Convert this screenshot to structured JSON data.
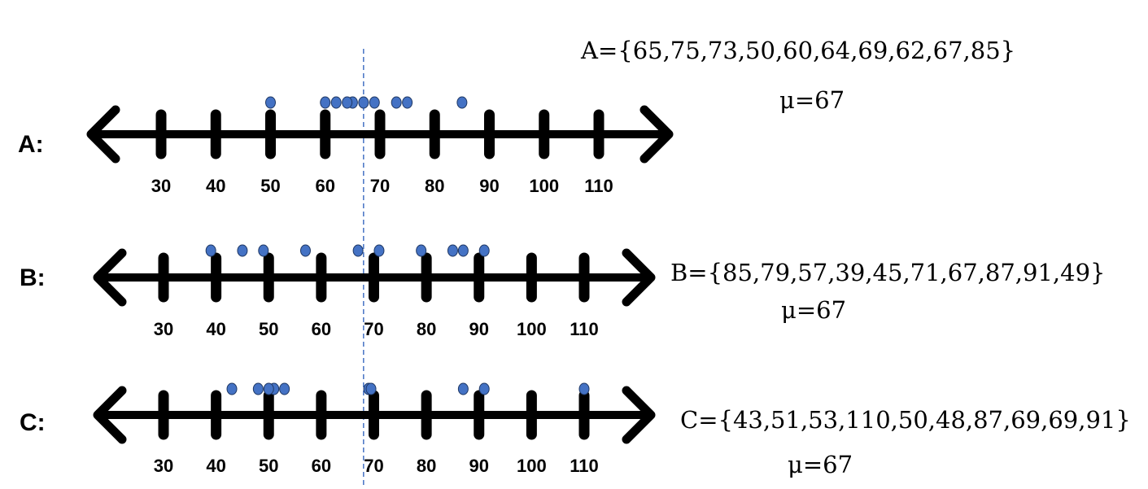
{
  "lines": [
    {
      "label": "A:",
      "set_text": "A={65,75,73,50,60,64,69,62,67,85}",
      "mean_text": "μ=67",
      "values": [
        65,
        75,
        73,
        50,
        60,
        64,
        69,
        62,
        67,
        85
      ]
    },
    {
      "label": "B:",
      "set_text": "B={85,79,57,39,45,71,67,87,91,49}",
      "mean_text": "μ=67",
      "values": [
        85,
        79,
        57,
        39,
        45,
        71,
        67,
        87,
        91,
        49
      ]
    },
    {
      "label": "C:",
      "set_text": "C={43,51,53,110,50,48,87,69,69,91}",
      "mean_text": "μ=67",
      "values": [
        43,
        51,
        53,
        110,
        50,
        48,
        87,
        69,
        69,
        91
      ]
    }
  ],
  "ticks": [
    30,
    40,
    50,
    60,
    70,
    80,
    90,
    100,
    110
  ],
  "axis_range": [
    30,
    110
  ],
  "mean_value": 67,
  "colors": {
    "axis": "#000000",
    "dot": "#4472c4",
    "dot_stroke": "#1f3864",
    "mean_line": "#4472c4"
  }
}
